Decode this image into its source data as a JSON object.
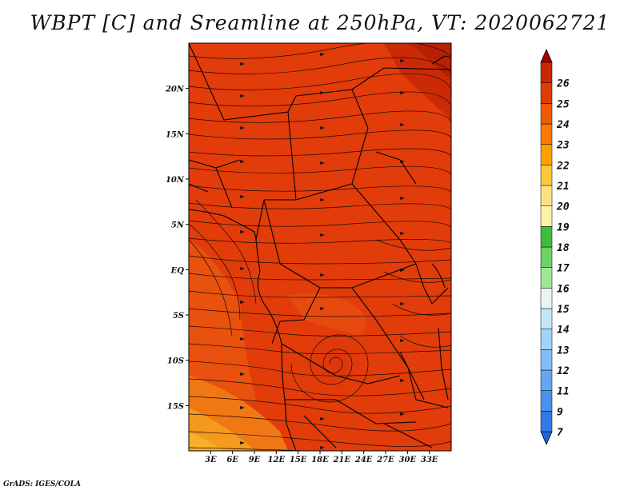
{
  "title": "WBPT [C] and Sreamline at 250hPa, VT: 2020062721",
  "credit": "GrADS: IGES/COLA",
  "map": {
    "lon_range": [
      0,
      36
    ],
    "lat_range": [
      -20,
      25
    ],
    "lon_ticks": [
      "3E",
      "6E",
      "9E",
      "12E",
      "15E",
      "18E",
      "21E",
      "24E",
      "27E",
      "30E",
      "33E"
    ],
    "lat_ticks": [
      "20N",
      "15N",
      "10N",
      "5N",
      "EQ",
      "5S",
      "10S",
      "15S"
    ]
  },
  "colorbar": {
    "labels": [
      "7",
      "9",
      "11",
      "12",
      "13",
      "14",
      "15",
      "16",
      "17",
      "18",
      "19",
      "20",
      "21",
      "22",
      "23",
      "24",
      "25",
      "26"
    ],
    "colors": [
      "#1e64dc",
      "#3278e6",
      "#4b91f0",
      "#64a5f5",
      "#82bef7",
      "#a0d2fa",
      "#c3e6fa",
      "#e6f5f0",
      "#a0e696",
      "#6ed264",
      "#3cbe3c",
      "#fff0aa",
      "#ffe182",
      "#ffc83c",
      "#ffa000",
      "#ff7800",
      "#f05a00",
      "#e03c00",
      "#c82800",
      "#a50000"
    ]
  }
}
